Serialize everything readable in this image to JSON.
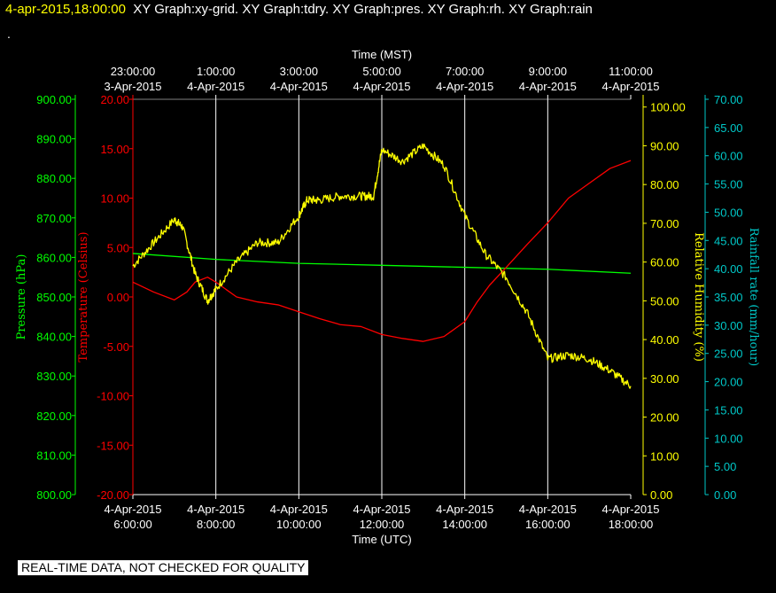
{
  "header": {
    "timestamp": "4-apr-2015,18:00:00",
    "graphs": "XY Graph:xy-grid.  XY Graph:tdry.  XY Graph:pres.  XY Graph:rh.  XY Graph:rain",
    "dot": "."
  },
  "disclaimer": "REAL-TIME DATA, NOT CHECKED FOR QUALITY",
  "colors": {
    "pressure": "#00ff00",
    "temperature": "#ff0000",
    "humidity": "#ffff00",
    "rain": "#00c8c8",
    "grid": "#ffffff"
  },
  "chart_data": {
    "type": "line",
    "grid": "vertical lines every 2 hours",
    "x_bottom": {
      "label": "Time (UTC)",
      "ticks": [
        [
          "4-Apr-2015",
          "6:00:00"
        ],
        [
          "4-Apr-2015",
          "8:00:00"
        ],
        [
          "4-Apr-2015",
          "10:00:00"
        ],
        [
          "4-Apr-2015",
          "12:00:00"
        ],
        [
          "4-Apr-2015",
          "14:00:00"
        ],
        [
          "4-Apr-2015",
          "16:00:00"
        ],
        [
          "4-Apr-2015",
          "18:00:00"
        ]
      ],
      "range_hours": [
        6,
        18
      ]
    },
    "x_top": {
      "label": "Time (MST)",
      "ticks": [
        [
          "23:00:00",
          "3-Apr-2015"
        ],
        [
          "1:00:00",
          "4-Apr-2015"
        ],
        [
          "3:00:00",
          "4-Apr-2015"
        ],
        [
          "5:00:00",
          "4-Apr-2015"
        ],
        [
          "7:00:00",
          "4-Apr-2015"
        ],
        [
          "9:00:00",
          "4-Apr-2015"
        ],
        [
          "11:00:00",
          "4-Apr-2015"
        ]
      ]
    },
    "axes": {
      "pressure": {
        "label": "Pressure (hPa)",
        "ylim": [
          800,
          900
        ],
        "ticks": [
          "800.00",
          "810.00",
          "820.00",
          "830.00",
          "840.00",
          "850.00",
          "860.00",
          "870.00",
          "880.00",
          "890.00",
          "900.00"
        ]
      },
      "temperature": {
        "label": "Temperature (Celsius)",
        "ylim": [
          -20,
          20
        ],
        "ticks": [
          "-20.00",
          "-15.00",
          "-10.00",
          "-5.00",
          "0.00",
          "5.00",
          "10.00",
          "15.00",
          "20.00"
        ]
      },
      "humidity": {
        "label": "Relative Humidity (%)",
        "ylim": [
          0,
          102
        ],
        "ticks": [
          "0.00",
          "10.00",
          "20.00",
          "30.00",
          "40.00",
          "50.00",
          "60.00",
          "70.00",
          "80.00",
          "90.00",
          "100.00"
        ]
      },
      "rain": {
        "label": "Rainfall rate (mm/hour)",
        "ylim": [
          0,
          70
        ],
        "ticks": [
          "0.00",
          "5.00",
          "10.00",
          "15.00",
          "20.00",
          "25.00",
          "30.00",
          "35.00",
          "40.00",
          "45.00",
          "50.00",
          "55.00",
          "60.00",
          "65.00",
          "70.00"
        ]
      }
    },
    "series": [
      {
        "axis": "pressure",
        "color": "#00ff00",
        "x": [
          6,
          8,
          10,
          12,
          14,
          16,
          18
        ],
        "y": [
          861.0,
          859.5,
          858.5,
          858.0,
          857.5,
          857.0,
          856.0
        ]
      },
      {
        "axis": "temperature",
        "color": "#ff0000",
        "x": [
          6,
          6.5,
          7,
          7.3,
          7.5,
          7.8,
          8.0,
          8.5,
          9,
          9.5,
          10,
          10.5,
          11,
          11.5,
          12,
          12.5,
          13,
          13.5,
          14,
          14.3,
          14.6,
          15,
          15.5,
          16,
          16.5,
          17,
          17.5,
          18
        ],
        "y": [
          1.5,
          0.5,
          -0.3,
          0.5,
          1.5,
          2.0,
          1.5,
          0.0,
          -0.5,
          -0.8,
          -1.5,
          -2.2,
          -2.8,
          -3.0,
          -3.8,
          -4.2,
          -4.5,
          -4.0,
          -2.5,
          -0.5,
          1.2,
          3.0,
          5.3,
          7.5,
          10.0,
          11.5,
          13.0,
          13.8
        ]
      },
      {
        "axis": "humidity",
        "color": "#ffff00",
        "x": [
          6,
          6.5,
          7,
          7.2,
          7.5,
          7.8,
          8.0,
          8.5,
          9,
          9.5,
          10,
          10.2,
          10.5,
          11,
          11.5,
          11.8,
          12,
          12.5,
          13,
          13.5,
          14,
          14.5,
          15,
          15.5,
          16,
          16.5,
          17,
          17.5,
          18
        ],
        "y": [
          59,
          65,
          71,
          69,
          57,
          50,
          53,
          60,
          65,
          65,
          72,
          76,
          76,
          77,
          77,
          77,
          89,
          86,
          90,
          85,
          72,
          62,
          56,
          47,
          35,
          36,
          35,
          32,
          28
        ]
      },
      {
        "axis": "rain",
        "color": "#00c8c8",
        "x": [],
        "y": []
      }
    ]
  }
}
